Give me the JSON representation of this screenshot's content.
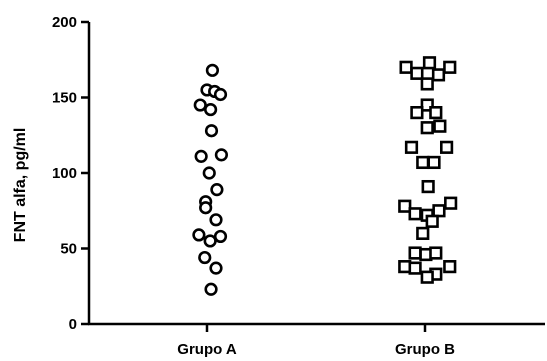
{
  "chart_data": {
    "type": "scatter",
    "title": "",
    "xlabel": "",
    "ylabel": "FNT alfa, pg/ml",
    "ylim": [
      0,
      200
    ],
    "yticks": [
      "0",
      "50",
      "100",
      "150",
      "200"
    ],
    "grid": false,
    "categories": [
      "Grupo A",
      "Grupo B"
    ],
    "series": [
      {
        "category": "Grupo A",
        "marker": "circle",
        "points": [
          {
            "offset": 0.12,
            "y": 168
          },
          {
            "offset": 0.0,
            "y": 155
          },
          {
            "offset": 0.17,
            "y": 154
          },
          {
            "offset": 0.3,
            "y": 152
          },
          {
            "offset": -0.15,
            "y": 145
          },
          {
            "offset": 0.08,
            "y": 142
          },
          {
            "offset": 0.1,
            "y": 128
          },
          {
            "offset": 0.32,
            "y": 112
          },
          {
            "offset": -0.13,
            "y": 111
          },
          {
            "offset": 0.05,
            "y": 100
          },
          {
            "offset": 0.22,
            "y": 89
          },
          {
            "offset": -0.03,
            "y": 81
          },
          {
            "offset": -0.03,
            "y": 77
          },
          {
            "offset": 0.2,
            "y": 69
          },
          {
            "offset": -0.18,
            "y": 59
          },
          {
            "offset": 0.3,
            "y": 58
          },
          {
            "offset": 0.07,
            "y": 55
          },
          {
            "offset": -0.05,
            "y": 44
          },
          {
            "offset": 0.2,
            "y": 37
          },
          {
            "offset": 0.09,
            "y": 23
          }
        ]
      },
      {
        "category": "Grupo B",
        "marker": "square",
        "points": [
          {
            "offset": 0.1,
            "y": 173
          },
          {
            "offset": -0.42,
            "y": 170
          },
          {
            "offset": 0.55,
            "y": 170
          },
          {
            "offset": -0.18,
            "y": 166
          },
          {
            "offset": 0.3,
            "y": 165
          },
          {
            "offset": 0.05,
            "y": 159
          },
          {
            "offset": 0.05,
            "y": 145
          },
          {
            "offset": -0.18,
            "y": 140
          },
          {
            "offset": 0.24,
            "y": 140
          },
          {
            "offset": 0.05,
            "y": 130
          },
          {
            "offset": 0.33,
            "y": 131
          },
          {
            "offset": -0.3,
            "y": 117
          },
          {
            "offset": 0.48,
            "y": 117
          },
          {
            "offset": -0.05,
            "y": 107
          },
          {
            "offset": 0.2,
            "y": 107
          },
          {
            "offset": 0.07,
            "y": 91
          },
          {
            "offset": -0.45,
            "y": 78
          },
          {
            "offset": 0.57,
            "y": 80
          },
          {
            "offset": -0.22,
            "y": 73
          },
          {
            "offset": 0.05,
            "y": 72
          },
          {
            "offset": 0.31,
            "y": 75
          },
          {
            "offset": 0.16,
            "y": 68
          },
          {
            "offset": -0.05,
            "y": 60
          },
          {
            "offset": -0.22,
            "y": 47
          },
          {
            "offset": 0.02,
            "y": 46
          },
          {
            "offset": 0.24,
            "y": 47
          },
          {
            "offset": -0.45,
            "y": 38
          },
          {
            "offset": -0.22,
            "y": 37
          },
          {
            "offset": 0.55,
            "y": 38
          },
          {
            "offset": 0.24,
            "y": 33
          },
          {
            "offset": 0.05,
            "y": 31
          }
        ]
      }
    ]
  }
}
